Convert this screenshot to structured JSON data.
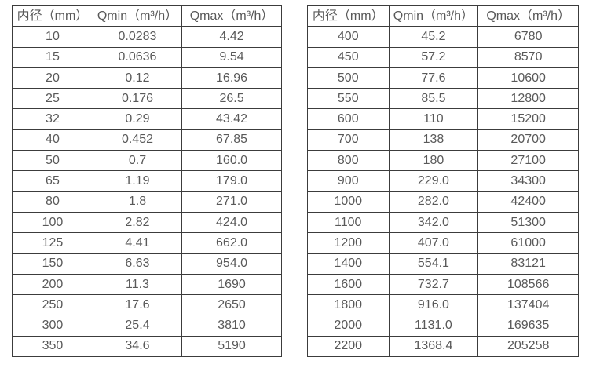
{
  "page": {
    "background": "#ffffff",
    "text_color": "#595959",
    "border_color": "#3c3c3c"
  },
  "chart_data": [
    {
      "type": "table",
      "name": "flow-rate-table-small-diameters",
      "columns": [
        "内径（mm）",
        "Qmin（m³/h）",
        "Qmax（m³/h）"
      ],
      "rows": [
        [
          "10",
          "0.0283",
          "4.42"
        ],
        [
          "15",
          "0.0636",
          "9.54"
        ],
        [
          "20",
          "0.12",
          "16.96"
        ],
        [
          "25",
          "0.176",
          "26.5"
        ],
        [
          "32",
          "0.29",
          "43.42"
        ],
        [
          "40",
          "0.452",
          "67.85"
        ],
        [
          "50",
          "0.7",
          "160.0"
        ],
        [
          "65",
          "1.19",
          "179.0"
        ],
        [
          "80",
          "1.8",
          "271.0"
        ],
        [
          "100",
          "2.82",
          "424.0"
        ],
        [
          "125",
          "4.41",
          "662.0"
        ],
        [
          "150",
          "6.63",
          "954.0"
        ],
        [
          "200",
          "11.3",
          "1690"
        ],
        [
          "250",
          "17.6",
          "2650"
        ],
        [
          "300",
          "25.4",
          "3810"
        ],
        [
          "350",
          "34.6",
          "5190"
        ]
      ]
    },
    {
      "type": "table",
      "name": "flow-rate-table-large-diameters",
      "columns": [
        "内径（mm）",
        "Qmin（m³/h）",
        "Qmax（m³/h）"
      ],
      "rows": [
        [
          "400",
          "45.2",
          "6780"
        ],
        [
          "450",
          "57.2",
          "8570"
        ],
        [
          "500",
          "77.6",
          "10600"
        ],
        [
          "550",
          "85.5",
          "12800"
        ],
        [
          "600",
          "110",
          "15200"
        ],
        [
          "700",
          "138",
          "20700"
        ],
        [
          "800",
          "180",
          "27100"
        ],
        [
          "900",
          "229.0",
          "34300"
        ],
        [
          "1000",
          "282.0",
          "42400"
        ],
        [
          "1100",
          "342.0",
          "51300"
        ],
        [
          "1200",
          "407.0",
          "61000"
        ],
        [
          "1400",
          "554.1",
          "83121"
        ],
        [
          "1600",
          "732.7",
          "108566"
        ],
        [
          "1800",
          "916.0",
          "137404"
        ],
        [
          "2000",
          "1131.0",
          "169635"
        ],
        [
          "2200",
          "1368.4",
          "205258"
        ]
      ]
    }
  ]
}
